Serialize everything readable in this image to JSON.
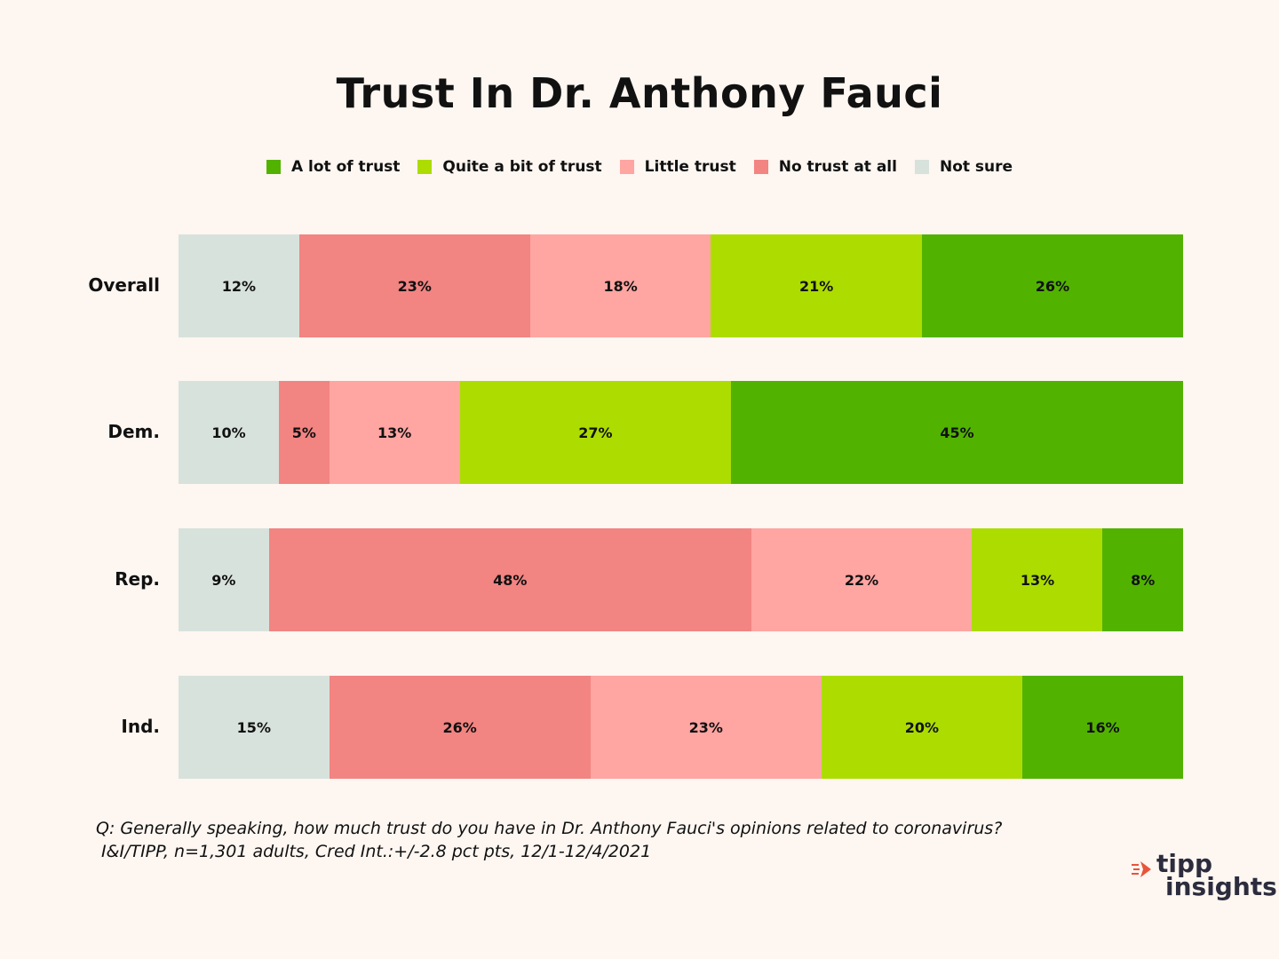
{
  "chart_data": {
    "type": "bar",
    "orientation": "horizontal",
    "stacked": true,
    "title": "Trust In Dr. Anthony Fauci",
    "categories": [
      "Overall",
      "Dem.",
      "Rep.",
      "Ind."
    ],
    "series": [
      {
        "name": "Not sure",
        "color": "#d8e2dc",
        "values": [
          12,
          10,
          9,
          15
        ],
        "labels": [
          "12%",
          "10%",
          "9%",
          "15%"
        ]
      },
      {
        "name": "No trust at all",
        "color": "#f28482",
        "values": [
          23,
          5,
          48,
          26
        ],
        "labels": [
          "23%",
          "5%",
          "48%",
          "26%"
        ]
      },
      {
        "name": "Little trust",
        "color": "#ffa5a2",
        "values": [
          18,
          13,
          22,
          23
        ],
        "labels": [
          "18%",
          "13%",
          "22%",
          "23%"
        ]
      },
      {
        "name": "Quite a bit of trust",
        "color": "#addc00",
        "values": [
          21,
          27,
          13,
          20
        ],
        "labels": [
          "21%",
          "27%",
          "13%",
          "20%"
        ]
      },
      {
        "name": "A lot of trust",
        "color": "#52b200",
        "values": [
          26,
          45,
          8,
          16
        ],
        "labels": [
          "26%",
          "45%",
          "8%",
          "16%"
        ]
      }
    ],
    "legend": [
      "A lot of trust",
      "Quite a bit of trust",
      "Little trust",
      "No trust at all",
      "Not sure"
    ],
    "legend_position": "top-center",
    "xlabel": "",
    "ylabel": "",
    "grid": false
  },
  "footnote": {
    "question": "Q: Generally speaking, how much trust do you have in Dr. Anthony Fauci's opinions related to coronavirus?",
    "source": " I&I/TIPP, n=1,301 adults, Cred Int.:+/-2.8 pct pts, 12/1-12/4/2021"
  },
  "logo": {
    "line1": "tipp",
    "line2": "insights",
    "accent_color": "#e8543a"
  }
}
